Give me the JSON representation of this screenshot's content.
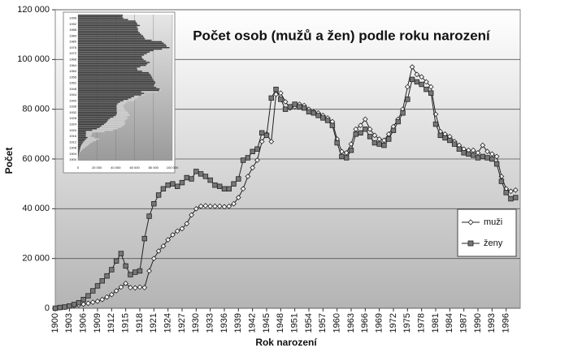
{
  "chart_data": [
    {
      "type": "line",
      "title": "Počet osob (mužů a žen) podle roku narození",
      "x_label": "Rok narození",
      "y_label": "Počet",
      "x": [
        1900,
        1901,
        1902,
        1903,
        1904,
        1905,
        1906,
        1907,
        1908,
        1909,
        1910,
        1911,
        1912,
        1913,
        1914,
        1915,
        1916,
        1917,
        1918,
        1919,
        1920,
        1921,
        1922,
        1923,
        1924,
        1925,
        1926,
        1927,
        1928,
        1929,
        1930,
        1931,
        1932,
        1933,
        1934,
        1935,
        1936,
        1937,
        1938,
        1939,
        1940,
        1941,
        1942,
        1943,
        1944,
        1945,
        1946,
        1947,
        1948,
        1949,
        1950,
        1951,
        1952,
        1953,
        1954,
        1955,
        1956,
        1957,
        1958,
        1959,
        1960,
        1961,
        1962,
        1963,
        1964,
        1965,
        1966,
        1967,
        1968,
        1969,
        1970,
        1971,
        1972,
        1973,
        1974,
        1975,
        1976,
        1977,
        1978,
        1979,
        1980,
        1981,
        1982,
        1983,
        1984,
        1985,
        1986,
        1987,
        1988,
        1989,
        1990,
        1991,
        1992,
        1993,
        1994,
        1995,
        1996,
        1997,
        1998
      ],
      "series": [
        {
          "name": "muži",
          "color": "#222222",
          "marker": "diamond",
          "marker_fill": "#ffffff",
          "values": [
            0,
            200,
            400,
            700,
            1000,
            1300,
            1600,
            2000,
            2400,
            2800,
            3500,
            4500,
            5500,
            7000,
            8500,
            10000,
            8300,
            8200,
            8500,
            8300,
            15000,
            20000,
            23000,
            25000,
            27500,
            29500,
            31000,
            32000,
            34000,
            37500,
            40000,
            41000,
            41200,
            41000,
            41000,
            41000,
            40800,
            41000,
            42000,
            44500,
            48000,
            53000,
            56500,
            59500,
            67000,
            70000,
            67000,
            86000,
            86500,
            83000,
            80500,
            81000,
            82000,
            81500,
            80000,
            79000,
            78500,
            77500,
            76500,
            75000,
            68000,
            63000,
            62500,
            66000,
            72000,
            73500,
            76000,
            72000,
            69500,
            68000,
            67500,
            70000,
            73000,
            76000,
            80000,
            89000,
            97000,
            94000,
            93000,
            91000,
            89000,
            78000,
            71000,
            70000,
            69000,
            67000,
            65500,
            64000,
            63500,
            63500,
            62500,
            65500,
            63000,
            62000,
            61000,
            53000,
            48000,
            47000,
            47500
          ]
        },
        {
          "name": "ženy",
          "color": "#222222",
          "marker": "square",
          "marker_fill": "#777777",
          "values": [
            0,
            300,
            500,
            900,
            1500,
            2200,
            3500,
            5000,
            7000,
            9000,
            11000,
            13000,
            15500,
            19000,
            22000,
            17000,
            13500,
            14500,
            15000,
            28000,
            37000,
            42000,
            45500,
            48000,
            49500,
            50000,
            49000,
            50500,
            52500,
            52000,
            55000,
            54000,
            53000,
            51500,
            49500,
            49000,
            48000,
            48000,
            50000,
            52000,
            59500,
            60500,
            63000,
            64000,
            70500,
            69500,
            84500,
            88000,
            84000,
            80000,
            81000,
            82000,
            81000,
            80500,
            79000,
            78500,
            77500,
            76500,
            75500,
            73500,
            66500,
            61000,
            60500,
            63500,
            70000,
            70500,
            72000,
            69000,
            66500,
            66000,
            65500,
            68000,
            71500,
            75000,
            78500,
            84000,
            92000,
            91000,
            90000,
            88000,
            86500,
            74000,
            69500,
            68500,
            67500,
            66000,
            64000,
            62500,
            62000,
            61500,
            60500,
            61000,
            60500,
            60000,
            58000,
            51000,
            46500,
            44000,
            44500
          ]
        }
      ],
      "xlim": [
        1900,
        1999
      ],
      "xticks": [
        1900,
        1903,
        1906,
        1909,
        1912,
        1915,
        1918,
        1921,
        1924,
        1927,
        1930,
        1933,
        1936,
        1939,
        1942,
        1945,
        1948,
        1951,
        1954,
        1957,
        1960,
        1963,
        1966,
        1969,
        1972,
        1975,
        1978,
        1981,
        1984,
        1987,
        1990,
        1993,
        1996
      ],
      "ylim": [
        0,
        120000
      ],
      "yticks": [
        0,
        {
          "value": 20000,
          "label": "20 000"
        },
        {
          "value": 40000,
          "label": "40 000"
        },
        {
          "value": 60000,
          "label": "60 000"
        },
        {
          "value": 80000,
          "label": "80 000"
        },
        {
          "value": 100000,
          "label": "100 000"
        },
        {
          "value": 120000,
          "label": "120 000"
        }
      ],
      "grid": true,
      "legend": "right"
    },
    {
      "type": "bar",
      "orientation": "horizontal",
      "colors": [
        "#3a3a3a",
        "#d0d0d0"
      ],
      "xlim": [
        0,
        100000
      ],
      "xticks": [
        0,
        {
          "value": 20000,
          "label": "20 000"
        },
        {
          "value": 40000,
          "label": "40 000"
        },
        {
          "value": 60000,
          "label": "60 000"
        },
        {
          "value": 80000,
          "label": "80 000"
        },
        {
          "value": 100000,
          "label": "100 000"
        }
      ],
      "ylim": [
        1900,
        1999
      ],
      "yticks": [
        1900,
        1904,
        1908,
        1912,
        1916,
        1920,
        1924,
        1928,
        1932,
        1936,
        1940,
        1944,
        1948,
        1952,
        1956,
        1960,
        1964,
        1968,
        1972,
        1976,
        1980,
        1984,
        1988,
        1992,
        1996
      ]
    }
  ]
}
